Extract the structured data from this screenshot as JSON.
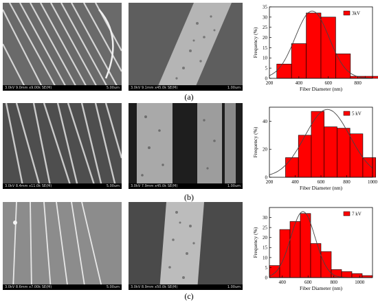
{
  "rows": [
    {
      "label": "(a)",
      "sem_left": {
        "info": "3.0kV 9.0mm x9.00k SE(M)",
        "scale": "5.00um"
      },
      "sem_right": {
        "info": "3.0kV 9.1mm x45.0k SE(M)",
        "scale": "1.00um"
      }
    },
    {
      "label": "(b)",
      "sem_left": {
        "info": "3.0kV 8.4mm x11.0k SE(M)",
        "scale": "5.00um"
      },
      "sem_right": {
        "info": "3.0kV 7.9mm x45.0k SE(M)",
        "scale": "1.00um"
      }
    },
    {
      "label": "(c)",
      "sem_left": {
        "info": "3.0kV 8.6mm x7.00k SE(M)",
        "scale": "5.00um"
      },
      "sem_right": {
        "info": "3.0kV 8.9mm x50.0k SE(M)",
        "scale": "1.00um"
      }
    }
  ],
  "colors": {
    "bar": "#ff0000",
    "bar_edge": "#000000",
    "curve": "#444444"
  },
  "chart_data": [
    {
      "type": "bar",
      "legend": "3kV",
      "legend_position": "top-right",
      "xlabel": "Fiber Diameter (nm)",
      "ylabel": "Frequency (%)",
      "xlim": [
        200,
        900
      ],
      "ylim": [
        0,
        35
      ],
      "xticks": [
        200,
        400,
        600,
        800
      ],
      "yticks": [
        0,
        5,
        10,
        15,
        20,
        25,
        30,
        35
      ],
      "bin_width": 100,
      "bin_starts": [
        250,
        350,
        450,
        550,
        650,
        750,
        850
      ],
      "values": [
        7,
        17,
        32,
        30,
        12,
        1,
        1
      ],
      "fit_mean": 490,
      "fit_sd": 115
    },
    {
      "type": "bar",
      "legend": "5 kV",
      "legend_position": "top-right",
      "xlabel": "Fiber Diameter (nm)",
      "ylabel": "Frequency (%)",
      "xlim": [
        200,
        1000
      ],
      "ylim": [
        0,
        50
      ],
      "xticks": [
        200,
        400,
        600,
        800,
        1000
      ],
      "yticks": [
        0,
        20,
        40
      ],
      "bin_width": 100,
      "bin_starts": [
        325,
        425,
        525,
        625,
        725,
        825,
        925
      ],
      "values": [
        14,
        30,
        47,
        36,
        35,
        31,
        14
      ],
      "fit_mean": 650,
      "fit_sd": 175
    },
    {
      "type": "bar",
      "legend": "7 kV",
      "legend_position": "top-right",
      "xlabel": "Fiber Diameter (nm)",
      "ylabel": "Frequency (%)",
      "xlim": [
        300,
        1100
      ],
      "ylim": [
        0,
        35
      ],
      "xticks": [
        400,
        600,
        800,
        1000
      ],
      "yticks": [
        0,
        5,
        10,
        15,
        20,
        25,
        30
      ],
      "bin_width": 80,
      "bin_starts": [
        300,
        380,
        460,
        540,
        620,
        700,
        780,
        860,
        940,
        1020
      ],
      "values": [
        6,
        24,
        28,
        32,
        17,
        13,
        4,
        3,
        2,
        1
      ],
      "fit_mean": 560,
      "fit_sd": 95
    }
  ]
}
